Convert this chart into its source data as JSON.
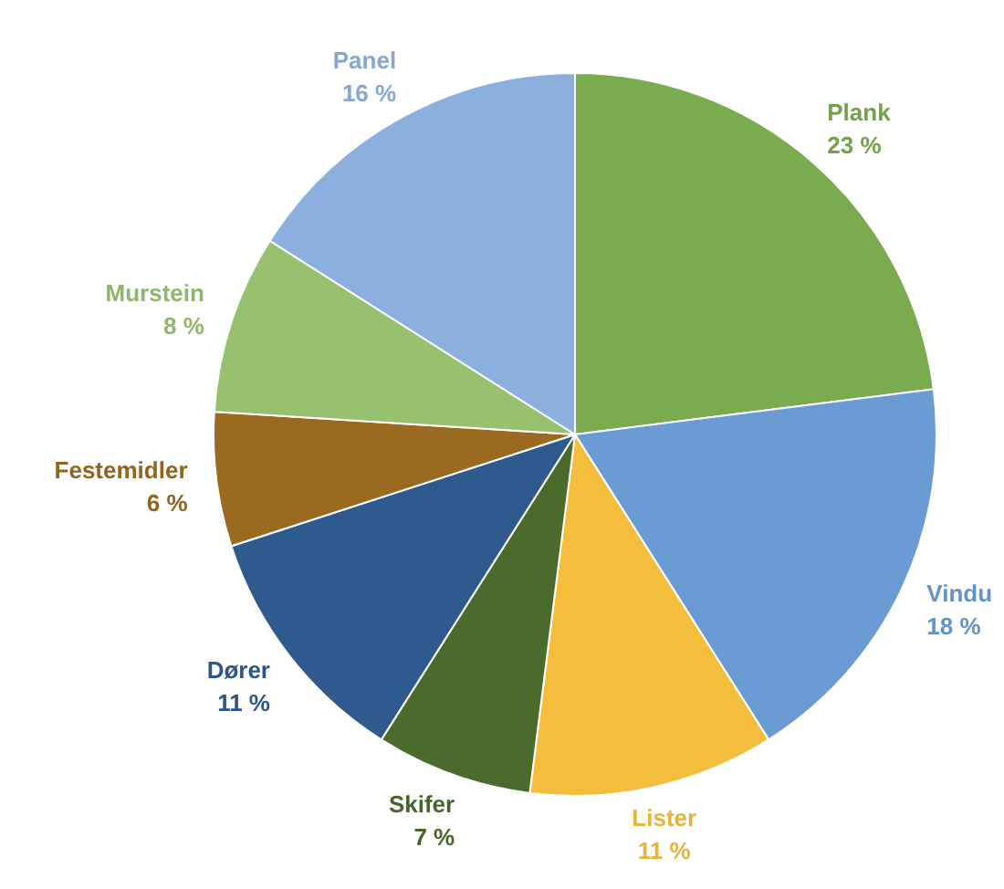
{
  "chart_data": {
    "type": "pie",
    "categories": [
      "Plank",
      "Vindu",
      "Lister",
      "Skifer",
      "Dører",
      "Festemidler",
      "Murstein",
      "Panel"
    ],
    "values": [
      23,
      18,
      11,
      7,
      11,
      6,
      8,
      16
    ],
    "value_labels": [
      "23 %",
      "18 %",
      "11 %",
      "7 %",
      "11 %",
      "6 %",
      "8 %",
      "16 %"
    ],
    "colors": [
      "#7aab4f",
      "#6a9bd3",
      "#f4be3c",
      "#4a6b2c",
      "#2e5a8e",
      "#9a6a20",
      "#97c16f",
      "#8cb0de"
    ]
  }
}
